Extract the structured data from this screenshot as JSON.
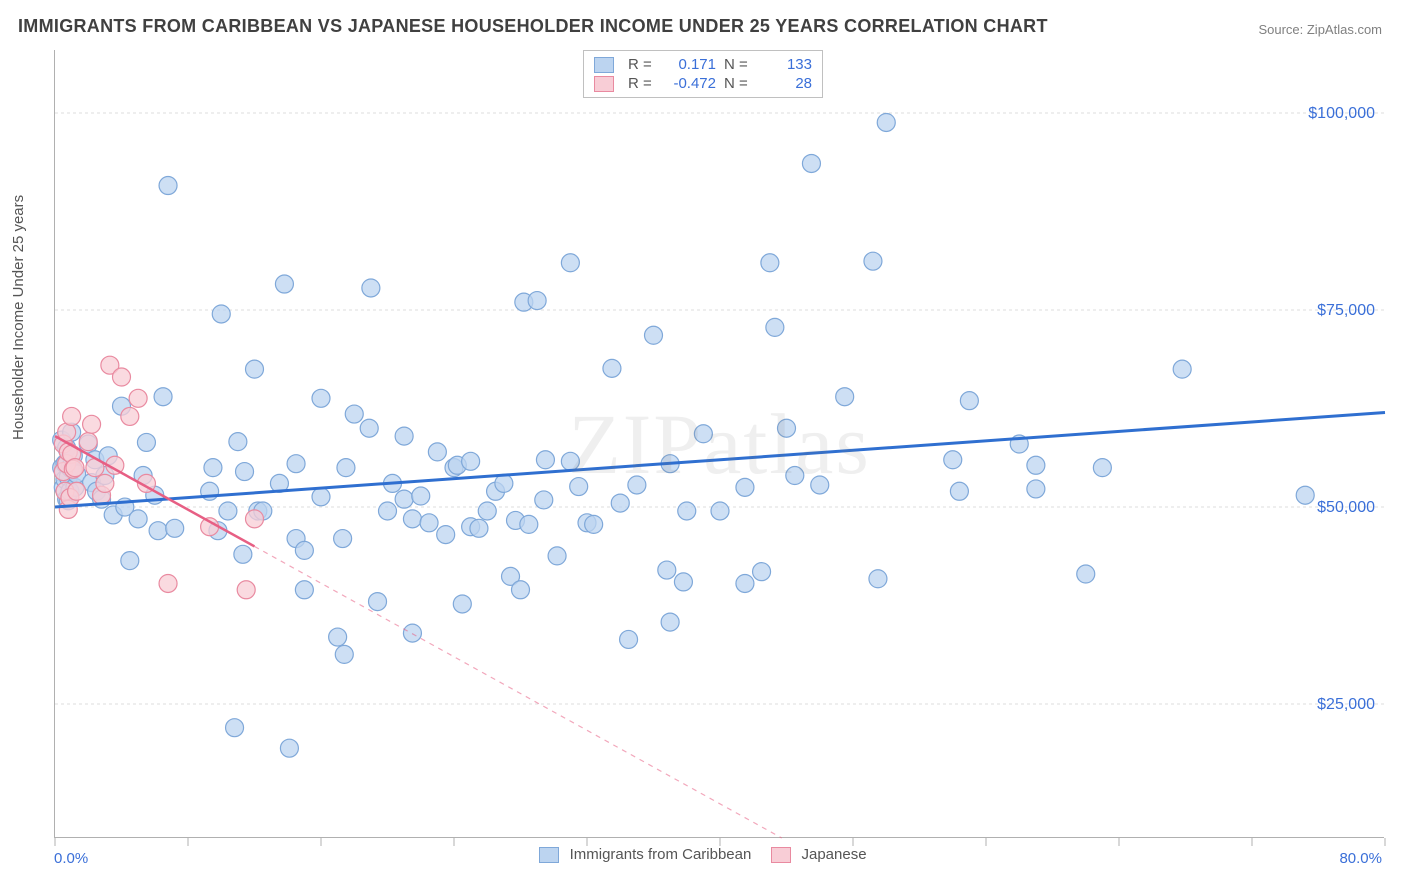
{
  "title": "IMMIGRANTS FROM CARIBBEAN VS JAPANESE HOUSEHOLDER INCOME UNDER 25 YEARS CORRELATION CHART",
  "source": "Source: ZipAtlas.com",
  "watermark": "ZIPatlas",
  "ylabel": "Householder Income Under 25 years",
  "chart": {
    "type": "scatter",
    "xlim": [
      0,
      80
    ],
    "ylim": [
      8000,
      108000
    ],
    "xtick_left": "0.0%",
    "xtick_right": "80.0%",
    "xtick_minor": [
      0,
      8,
      16,
      24,
      32,
      40,
      48,
      56,
      64,
      72,
      80
    ],
    "ytick_labels": [
      "$25,000",
      "$50,000",
      "$75,000",
      "$100,000"
    ],
    "ytick_values": [
      25000,
      50000,
      75000,
      100000
    ],
    "grid_color": "#dcdcdc",
    "axis_color": "#b0b0b0",
    "background_color": "#ffffff",
    "tick_label_color": "#3a6fd8",
    "label_fontsize": 15,
    "title_fontsize": 18,
    "title_color": "#404040",
    "marker_radius": 9,
    "marker_stroke_width": 1.2
  },
  "series": [
    {
      "name": "Immigrants from Caribbean",
      "color_fill": "#bcd4f0",
      "color_stroke": "#7fa8d9",
      "line_color": "#2f6fd0",
      "line_width": 3,
      "line_dash": "0",
      "R": "0.171",
      "N": "133",
      "trend": {
        "x1": 0,
        "y1": 50000,
        "x2": 80,
        "y2": 62000
      },
      "points": [
        [
          0.4,
          58500
        ],
        [
          0.4,
          55000
        ],
        [
          0.5,
          54500
        ],
        [
          0.5,
          52500
        ],
        [
          0.6,
          55500
        ],
        [
          0.6,
          53500
        ],
        [
          0.7,
          57500
        ],
        [
          0.7,
          51000
        ],
        [
          0.7,
          55500
        ],
        [
          0.8,
          50800
        ],
        [
          0.8,
          53800
        ],
        [
          0.9,
          55000
        ],
        [
          0.9,
          52000
        ],
        [
          1.0,
          59500
        ],
        [
          1.0,
          54800
        ],
        [
          1.1,
          56500
        ],
        [
          1.2,
          52500
        ],
        [
          1.3,
          54200
        ],
        [
          2.0,
          58000
        ],
        [
          2.2,
          53100
        ],
        [
          2.4,
          56000
        ],
        [
          2.5,
          52000
        ],
        [
          2.8,
          51000
        ],
        [
          3.0,
          54000
        ],
        [
          3.2,
          56500
        ],
        [
          3.5,
          49000
        ],
        [
          4.0,
          62800
        ],
        [
          4.2,
          50000
        ],
        [
          4.5,
          43200
        ],
        [
          5.0,
          48500
        ],
        [
          5.3,
          54000
        ],
        [
          5.5,
          58200
        ],
        [
          6.0,
          51500
        ],
        [
          6.2,
          47000
        ],
        [
          6.5,
          64000
        ],
        [
          6.8,
          90800
        ],
        [
          7.2,
          47300
        ],
        [
          9.3,
          52000
        ],
        [
          9.5,
          55000
        ],
        [
          9.8,
          47000
        ],
        [
          10.0,
          74500
        ],
        [
          10.4,
          49500
        ],
        [
          10.8,
          22000
        ],
        [
          11.0,
          58300
        ],
        [
          11.3,
          44000
        ],
        [
          11.4,
          54500
        ],
        [
          12.0,
          67500
        ],
        [
          12.2,
          49500
        ],
        [
          12.5,
          49500
        ],
        [
          13.5,
          53000
        ],
        [
          13.8,
          78300
        ],
        [
          14.1,
          19400
        ],
        [
          14.5,
          46000
        ],
        [
          14.5,
          55500
        ],
        [
          15.0,
          39500
        ],
        [
          15.0,
          44500
        ],
        [
          16.0,
          51300
        ],
        [
          16.0,
          63800
        ],
        [
          17.0,
          33500
        ],
        [
          17.3,
          46000
        ],
        [
          17.4,
          31300
        ],
        [
          17.5,
          55000
        ],
        [
          18.0,
          61800
        ],
        [
          18.9,
          60000
        ],
        [
          19.0,
          77800
        ],
        [
          19.4,
          38000
        ],
        [
          20.0,
          49500
        ],
        [
          20.3,
          53000
        ],
        [
          21.0,
          51000
        ],
        [
          21.0,
          59000
        ],
        [
          21.5,
          34000
        ],
        [
          21.5,
          48500
        ],
        [
          22.0,
          51400
        ],
        [
          22.5,
          48000
        ],
        [
          23.0,
          57000
        ],
        [
          23.5,
          46500
        ],
        [
          24.0,
          55000
        ],
        [
          24.2,
          55300
        ],
        [
          24.5,
          37700
        ],
        [
          25.0,
          47500
        ],
        [
          25.0,
          55800
        ],
        [
          25.5,
          47300
        ],
        [
          26.0,
          49500
        ],
        [
          26.5,
          52000
        ],
        [
          27.0,
          53000
        ],
        [
          27.4,
          41200
        ],
        [
          27.7,
          48300
        ],
        [
          28.0,
          39500
        ],
        [
          28.2,
          76000
        ],
        [
          28.5,
          47800
        ],
        [
          29.0,
          76200
        ],
        [
          29.4,
          50900
        ],
        [
          29.5,
          56000
        ],
        [
          30.2,
          43800
        ],
        [
          31.0,
          55800
        ],
        [
          31.0,
          81000
        ],
        [
          31.5,
          52600
        ],
        [
          32.0,
          48000
        ],
        [
          32.4,
          47800
        ],
        [
          33.5,
          67600
        ],
        [
          34.0,
          50500
        ],
        [
          34.5,
          33200
        ],
        [
          35.0,
          52800
        ],
        [
          36.0,
          71800
        ],
        [
          36.8,
          42000
        ],
        [
          37.0,
          35400
        ],
        [
          37.0,
          55500
        ],
        [
          37.8,
          40500
        ],
        [
          38.0,
          49500
        ],
        [
          39.0,
          59300
        ],
        [
          40.0,
          49500
        ],
        [
          41.5,
          40300
        ],
        [
          41.5,
          52500
        ],
        [
          42.5,
          41800
        ],
        [
          43.0,
          81000
        ],
        [
          43.3,
          72800
        ],
        [
          44.0,
          60000
        ],
        [
          44.5,
          54000
        ],
        [
          45.5,
          93600
        ],
        [
          46.0,
          52800
        ],
        [
          47.5,
          64000
        ],
        [
          49.2,
          81200
        ],
        [
          49.5,
          40900
        ],
        [
          50.0,
          98800
        ],
        [
          54.0,
          56000
        ],
        [
          54.4,
          52000
        ],
        [
          55.0,
          63500
        ],
        [
          58.0,
          58000
        ],
        [
          59.0,
          52300
        ],
        [
          59.0,
          55300
        ],
        [
          62.0,
          41500
        ],
        [
          63.0,
          55000
        ],
        [
          67.8,
          67500
        ],
        [
          75.2,
          51500
        ]
      ]
    },
    {
      "name": "Japanese",
      "color_fill": "#f8cdd6",
      "color_stroke": "#e98aa0",
      "line_color": "#e75f84",
      "line_width": 2.5,
      "line_dash": "0",
      "line_dash_ext": "5,5",
      "R": "-0.472",
      "N": "28",
      "trend": {
        "x1": 0,
        "y1": 59000,
        "x2": 12,
        "y2": 45000,
        "x2_ext": 53,
        "y2_ext": 0
      },
      "points": [
        [
          0.5,
          58000
        ],
        [
          0.5,
          54500
        ],
        [
          0.6,
          52000
        ],
        [
          0.7,
          59500
        ],
        [
          0.7,
          55500
        ],
        [
          0.8,
          57000
        ],
        [
          0.8,
          49700
        ],
        [
          0.9,
          51200
        ],
        [
          1.0,
          56700
        ],
        [
          1.0,
          61500
        ],
        [
          1.1,
          54800
        ],
        [
          1.2,
          55000
        ],
        [
          1.3,
          52000
        ],
        [
          2.0,
          58300
        ],
        [
          2.2,
          60500
        ],
        [
          2.4,
          55000
        ],
        [
          2.8,
          51500
        ],
        [
          3.0,
          53000
        ],
        [
          3.3,
          68000
        ],
        [
          3.6,
          55300
        ],
        [
          4.0,
          66500
        ],
        [
          4.5,
          61500
        ],
        [
          5.0,
          63800
        ],
        [
          5.5,
          53000
        ],
        [
          6.8,
          40300
        ],
        [
          9.3,
          47500
        ],
        [
          12.0,
          48500
        ],
        [
          11.5,
          39500
        ]
      ]
    }
  ],
  "bottom_legend": [
    {
      "label": "Immigrants from Caribbean",
      "fill": "#bcd4f0",
      "stroke": "#7fa8d9"
    },
    {
      "label": "Japanese",
      "fill": "#f8cdd6",
      "stroke": "#e98aa0"
    }
  ]
}
